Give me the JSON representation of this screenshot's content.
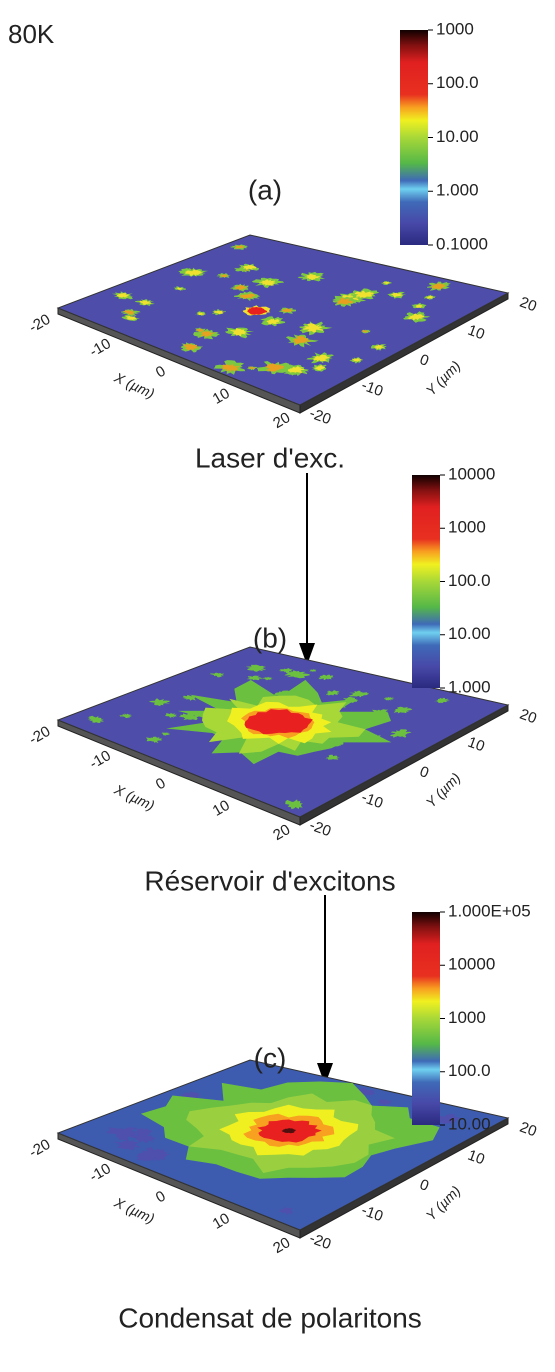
{
  "title": "80K",
  "panels": [
    {
      "label": "(a)",
      "colorbar_ticks": [
        "1000",
        "100.0",
        "10.00",
        "1.000",
        "0.1000"
      ],
      "x_axis_label": "X (µm)",
      "y_axis_label": "Y (µm)",
      "x_ticks": [
        "-20",
        "-10",
        "0",
        "10",
        "20"
      ],
      "y_ticks": [
        "20",
        "10",
        "0",
        "-10",
        "-20"
      ],
      "caption": "Laser d'exc."
    },
    {
      "label": "(b)",
      "colorbar_ticks": [
        "10000",
        "1000",
        "100.0",
        "10.00",
        "1.000"
      ],
      "x_axis_label": "X (µm)",
      "y_axis_label": "Y (µm)",
      "x_ticks": [
        "-20",
        "-10",
        "0",
        "10",
        "20"
      ],
      "y_ticks": [
        "20",
        "10",
        "0",
        "-10",
        "-20"
      ],
      "caption": "Réservoir d'excitons"
    },
    {
      "label": "(c)",
      "colorbar_ticks": [
        "1.000E+05",
        "10000",
        "1000",
        "100.0",
        "10.00"
      ],
      "x_axis_label": "X (µm)",
      "y_axis_label": "Y (µm)",
      "x_ticks": [
        "-20",
        "-10",
        "0",
        "10",
        "20"
      ],
      "y_ticks": [
        "20",
        "10",
        "0",
        "-10",
        "-20"
      ],
      "caption": "Condensat de polaritons"
    }
  ]
}
